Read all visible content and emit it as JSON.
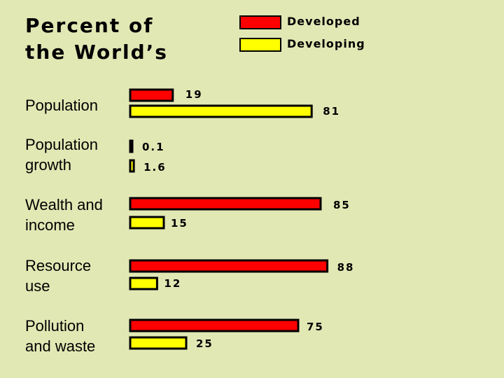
{
  "chart_data": {
    "type": "bar",
    "orientation": "horizontal",
    "title_lines": [
      "Percent of",
      "the World’s"
    ],
    "categories": [
      [
        "Population"
      ],
      [
        "Population",
        "growth"
      ],
      [
        "Wealth and",
        "income"
      ],
      [
        "Resource",
        "use"
      ],
      [
        "Pollution",
        "and waste"
      ]
    ],
    "series": [
      {
        "name": "Developed",
        "color": "#ff0000",
        "values": [
          19,
          0.1,
          85,
          88,
          75
        ],
        "labels": [
          "19",
          "0.1",
          "85",
          "88",
          "75"
        ]
      },
      {
        "name": "Developing",
        "color": "#ffff00",
        "values": [
          81,
          1.6,
          15,
          12,
          25
        ],
        "labels": [
          "81",
          "1.6",
          "15",
          "12",
          "25"
        ]
      }
    ],
    "xlim": [
      0,
      100
    ],
    "legend_position": "top-right",
    "grid": false
  }
}
